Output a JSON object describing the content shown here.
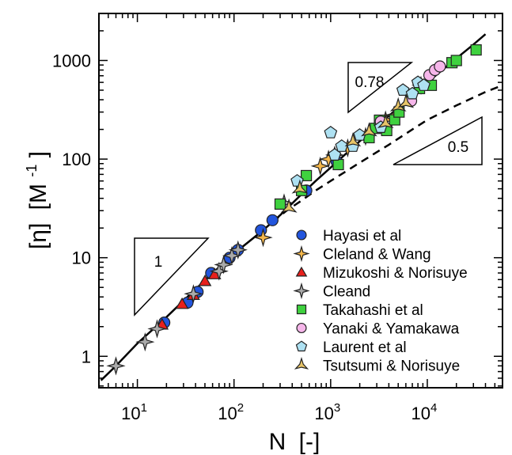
{
  "chart_data": {
    "type": "scatter",
    "xlabel_main": "N",
    "xlabel_unit": "[-]",
    "ylabel_main": "[η]",
    "ylabel_unit": "[M",
    "ylabel_unit_exp": "-1",
    "ylabel_unit_close": "]",
    "xscale": "log",
    "yscale": "log",
    "xlim": [
      4,
      60000
    ],
    "ylim": [
      0.48,
      3000
    ],
    "x_ticks": [
      {
        "value": 10,
        "base": "10",
        "exp": "1"
      },
      {
        "value": 100,
        "base": "10",
        "exp": "2"
      },
      {
        "value": 1000,
        "base": "10",
        "exp": "3"
      },
      {
        "value": 10000,
        "base": "10",
        "exp": "4"
      }
    ],
    "y_ticks": [
      {
        "value": 1,
        "label": "1"
      },
      {
        "value": 10,
        "label": "10"
      },
      {
        "value": 100,
        "label": "100"
      },
      {
        "value": 1000,
        "label": "1000"
      }
    ],
    "legend_position": "bottom-right",
    "slope_triangles": [
      {
        "label": "1",
        "slope": 1
      },
      {
        "label": "0.78",
        "slope": 0.78
      },
      {
        "label": "0.5",
        "slope": 0.5
      }
    ],
    "curves": [
      {
        "style": "solid",
        "points": [
          [
            4.2,
            0.57
          ],
          [
            6,
            0.8
          ],
          [
            10,
            1.35
          ],
          [
            20,
            2.5
          ],
          [
            40,
            4.8
          ],
          [
            70,
            8
          ],
          [
            100,
            11
          ],
          [
            200,
            19
          ],
          [
            300,
            27
          ],
          [
            500,
            44
          ],
          [
            700,
            60
          ],
          [
            1000,
            82
          ],
          [
            2000,
            152
          ],
          [
            4000,
            275
          ],
          [
            7000,
            440
          ],
          [
            10000,
            600
          ],
          [
            20000,
            1050
          ],
          [
            30000,
            1450
          ],
          [
            40000,
            1850
          ]
        ]
      },
      {
        "style": "dashed",
        "points": [
          [
            250,
            23
          ],
          [
            350,
            30
          ],
          [
            500,
            38
          ],
          [
            700,
            48
          ],
          [
            1000,
            60
          ],
          [
            2000,
            92
          ],
          [
            4000,
            140
          ],
          [
            7000,
            200
          ],
          [
            10000,
            250
          ],
          [
            20000,
            350
          ],
          [
            40000,
            480
          ],
          [
            60000,
            560
          ]
        ]
      }
    ],
    "series": [
      {
        "name": "Hayasi et al",
        "marker": "circle",
        "color": "#2255dd",
        "points": [
          [
            19,
            2.2
          ],
          [
            33,
            3.5
          ],
          [
            42,
            4.5
          ],
          [
            58,
            7
          ],
          [
            90,
            10
          ],
          [
            110,
            12
          ],
          [
            190,
            19
          ],
          [
            250,
            24
          ],
          [
            560,
            48
          ],
          [
            1150,
            95
          ]
        ]
      },
      {
        "name": "Cleland & Wang",
        "marker": "star4",
        "color": "#f5b74a",
        "points": [
          [
            200,
            16
          ],
          [
            780,
            85
          ],
          [
            950,
            100
          ],
          [
            1100,
            110
          ],
          [
            1500,
            130
          ],
          [
            2300,
            170
          ],
          [
            3700,
            250
          ],
          [
            4600,
            280
          ],
          [
            8600,
            560
          ]
        ]
      },
      {
        "name": "Mizukoshi & Norisuye",
        "marker": "triangle",
        "color": "#e8201c",
        "points": [
          [
            18,
            2.1
          ],
          [
            29,
            3.4
          ],
          [
            38,
            4.2
          ],
          [
            50,
            5.8
          ],
          [
            63,
            6.8
          ]
        ]
      },
      {
        "name": "Cleand",
        "marker": "star4",
        "color": "#aaaaaa",
        "points": [
          [
            6,
            0.8
          ],
          [
            12,
            1.4
          ],
          [
            16,
            1.9
          ],
          [
            38,
            4.3
          ],
          [
            70,
            7.3
          ],
          [
            78,
            8.5
          ],
          [
            95,
            10.5
          ],
          [
            110,
            12
          ],
          [
            330,
            36
          ]
        ]
      },
      {
        "name": "Takahashi et al",
        "marker": "square",
        "color": "#3fd13f",
        "points": [
          [
            300,
            35
          ],
          [
            500,
            48
          ],
          [
            560,
            68
          ],
          [
            1200,
            88
          ],
          [
            2500,
            165
          ],
          [
            2900,
            205
          ],
          [
            3200,
            248
          ],
          [
            3800,
            195
          ],
          [
            4600,
            250
          ],
          [
            5100,
            300
          ],
          [
            6800,
            440
          ],
          [
            8300,
            520
          ],
          [
            11000,
            560
          ],
          [
            18000,
            950
          ],
          [
            20000,
            1000
          ],
          [
            32000,
            1280
          ]
        ]
      },
      {
        "name": "Yanaki & Yamakawa",
        "marker": "circle",
        "color": "#f6b6ea",
        "points": [
          [
            3300,
            240
          ],
          [
            6800,
            390
          ],
          [
            10500,
            710
          ],
          [
            12000,
            800
          ],
          [
            13500,
            870
          ]
        ]
      },
      {
        "name": "Laurent et al",
        "marker": "pentagon",
        "color": "#aee1f2",
        "points": [
          [
            450,
            60
          ],
          [
            1000,
            185
          ],
          [
            1100,
            110
          ],
          [
            1300,
            135
          ],
          [
            1700,
            135
          ],
          [
            2000,
            175
          ],
          [
            3300,
            210
          ],
          [
            5600,
            500
          ],
          [
            7000,
            460
          ],
          [
            8000,
            600
          ],
          [
            9200,
            560
          ]
        ]
      },
      {
        "name": "Tsutsumi & Norisuye",
        "marker": "star3",
        "color": "#e8c568",
        "points": [
          [
            370,
            32
          ],
          [
            480,
            50
          ],
          [
            1700,
            150
          ],
          [
            2500,
            190
          ],
          [
            3700,
            230
          ],
          [
            5000,
            340
          ],
          [
            6000,
            370
          ]
        ]
      }
    ]
  }
}
